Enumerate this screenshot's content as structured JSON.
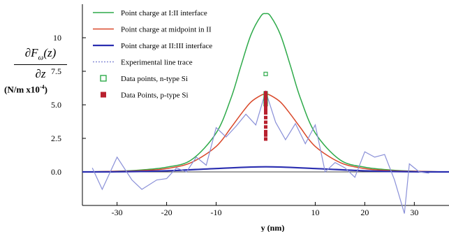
{
  "chart_data": {
    "type": "line",
    "title": "",
    "xlabel": "y (nm)",
    "ylabel_numerator": "∂F",
    "ylabel_subscript": "ω",
    "ylabel_numerator_tail": "(z)",
    "ylabel_denominator": "∂z",
    "ylabel_units": "(N/m x10",
    "ylabel_units_exp": "-4",
    "ylabel_units_tail": ")",
    "xlim": [
      -37,
      37
    ],
    "ylim": [
      -2.5,
      12.5
    ],
    "x_ticks": [
      -30,
      -20,
      -10,
      10,
      20,
      30
    ],
    "x_tick_labels": [
      "-30",
      "-20",
      "-10",
      "10",
      "20",
      "30"
    ],
    "y_ticks": [
      0,
      2.5,
      5,
      7.5,
      10
    ],
    "y_tick_labels": [
      "0.0",
      "2.5",
      "5.0",
      "7.5",
      "10"
    ],
    "grid": false,
    "legend_position": "top-left",
    "series": [
      {
        "name": "Point charge at I:II interface",
        "kind": "line",
        "color": "#2eaa4a",
        "x": [
          -37,
          -30,
          -25,
          -20,
          -15,
          -10,
          -7,
          -5,
          -3,
          -1,
          0,
          1,
          3,
          5,
          7,
          10,
          15,
          20,
          25,
          30,
          37
        ],
        "y": [
          0,
          0.05,
          0.15,
          0.35,
          0.9,
          2.9,
          5.5,
          7.9,
          10.2,
          11.6,
          11.8,
          11.6,
          10.2,
          7.9,
          5.5,
          2.9,
          0.9,
          0.35,
          0.15,
          0.05,
          0
        ]
      },
      {
        "name": "Point charge at midpoint in II",
        "kind": "line",
        "color": "#d9482a",
        "x": [
          -37,
          -30,
          -25,
          -20,
          -15,
          -10,
          -7,
          -5,
          -3,
          -1,
          0,
          1,
          3,
          5,
          7,
          10,
          15,
          20,
          25,
          30,
          37
        ],
        "y": [
          0,
          0.05,
          0.1,
          0.25,
          0.7,
          1.9,
          3.3,
          4.3,
          5.2,
          5.7,
          5.8,
          5.7,
          5.2,
          4.3,
          3.3,
          1.9,
          0.7,
          0.25,
          0.1,
          0.05,
          0
        ]
      },
      {
        "name": "Point charge at II:III interface",
        "kind": "line",
        "color": "#2a2eb0",
        "x": [
          -37,
          -30,
          -20,
          -10,
          0,
          10,
          20,
          30,
          37
        ],
        "y": [
          0,
          0.01,
          0.08,
          0.25,
          0.38,
          0.25,
          0.08,
          0.01,
          0
        ]
      },
      {
        "name": "Experimental line trace",
        "kind": "line",
        "color": "#8a90d8",
        "x": [
          -35,
          -33,
          -30,
          -27,
          -25,
          -22,
          -20,
          -18,
          -16,
          -14,
          -12,
          -10,
          -8,
          -6,
          -4,
          -2,
          0,
          2,
          4,
          6,
          8,
          10,
          12,
          14,
          16,
          18,
          20,
          22,
          24,
          26,
          28,
          29,
          31,
          33
        ],
        "y": [
          0.3,
          -1.3,
          1.1,
          -0.6,
          -1.3,
          -0.6,
          -0.5,
          0.3,
          0.0,
          1.1,
          0.5,
          3.3,
          2.6,
          3.4,
          4.3,
          3.5,
          6.0,
          3.7,
          2.4,
          3.6,
          2.1,
          3.5,
          0.0,
          0.7,
          0.3,
          -0.4,
          1.5,
          1.1,
          1.3,
          -0.6,
          -3.1,
          0.6,
          0.0,
          -0.1
        ]
      },
      {
        "name": "Data points, n-type Si",
        "kind": "points",
        "marker": "hollow-square",
        "color": "#2eaa4a",
        "x": [
          0,
          0,
          0,
          0,
          0,
          0
        ],
        "y": [
          7.3,
          5.85,
          5.65,
          5.45,
          5.25,
          5.05
        ]
      },
      {
        "name": "Data Points, p-type Si",
        "kind": "points",
        "marker": "filled-square",
        "color": "#b8202e",
        "x": [
          0,
          0,
          0,
          0,
          0,
          0,
          0,
          0,
          0,
          0,
          0,
          0,
          0
        ],
        "y": [
          5.9,
          5.65,
          5.4,
          5.15,
          4.9,
          4.65,
          4.4,
          4.05,
          3.7,
          3.35,
          3.0,
          2.75,
          2.45
        ]
      }
    ]
  }
}
